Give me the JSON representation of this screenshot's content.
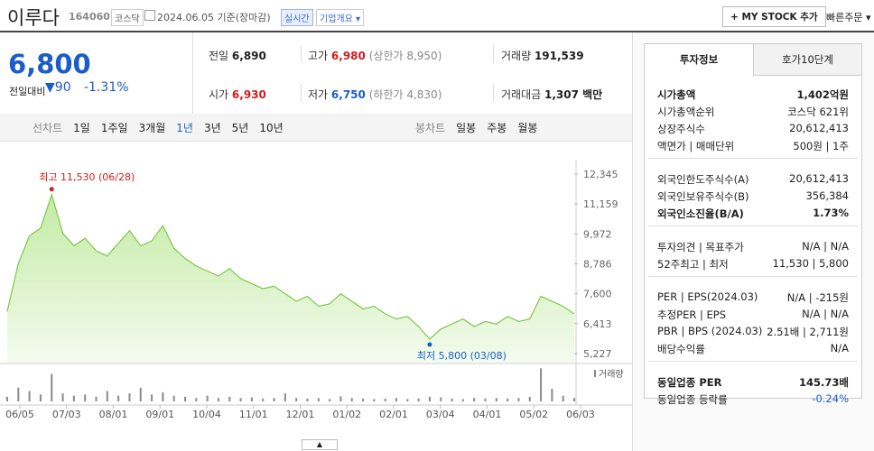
{
  "header": {
    "name": "이루다",
    "code": "164060",
    "market": "코스닥",
    "date": "2024.06.05 기준(장마감)",
    "realtime": "실시간",
    "overview": "기업개요",
    "my_stock": "+ MY STOCK 추가",
    "quick_order": "빠른주문"
  },
  "price": {
    "current": "6,800",
    "change_label": "전일대비",
    "change": "90",
    "change_pct": "-1.31%"
  },
  "stats": [
    {
      "label": "전일",
      "value": "6,890"
    },
    {
      "label": "고가",
      "value": "6,980",
      "limit": "(상한가 8,950)"
    },
    {
      "label": "거래량",
      "value": "191,539"
    },
    {
      "label": "시가",
      "value": "6,930"
    },
    {
      "label": "저가",
      "value": "6,750",
      "limit": "(하한가 4,830)"
    },
    {
      "label": "거래대금",
      "value": "1,307 백만"
    }
  ],
  "periods": {
    "line_label": "선차트",
    "line": [
      "1일",
      "1주일",
      "3개월",
      "1년",
      "3년",
      "5년",
      "10년"
    ],
    "candle_label": "봉차트",
    "candle": [
      "일봉",
      "주봉",
      "월봉"
    ]
  },
  "chart_data": {
    "type": "area",
    "color": "#7cc84a",
    "ylim": [
      5227,
      12345
    ],
    "yticks": [
      {
        "value": 12345,
        "label": "12,345"
      },
      {
        "value": 11159,
        "label": "11,159"
      },
      {
        "value": 9972,
        "label": "9,972"
      },
      {
        "value": 8786,
        "label": "8,786"
      },
      {
        "value": 7600,
        "label": "7,600"
      },
      {
        "value": 6413,
        "label": "6,413"
      },
      {
        "value": 5227,
        "label": "5,227"
      }
    ],
    "x_labels": [
      "06/05",
      "07/03",
      "08/01",
      "09/01",
      "10/04",
      "11/01",
      "12/01",
      "01/02",
      "02/01",
      "03/04",
      "04/01",
      "05/02",
      "06/03"
    ],
    "values": [
      6900,
      8800,
      9900,
      10200,
      11530,
      10000,
      9500,
      9800,
      9300,
      9100,
      9600,
      10100,
      9500,
      9700,
      10300,
      9400,
      9000,
      8700,
      8500,
      8300,
      8600,
      8200,
      8000,
      7800,
      7900,
      7600,
      7300,
      7500,
      7100,
      7200,
      7600,
      7300,
      7000,
      7100,
      6800,
      6600,
      6700,
      6300,
      5800,
      6200,
      6400,
      6600,
      6300,
      6500,
      6400,
      6700,
      6500,
      6600,
      7500,
      7300,
      7100,
      6800
    ],
    "annotations": [
      {
        "text": "최고 11,530 (06/28)",
        "value": 11530
      },
      {
        "text": "최저 5,800 (03/08)",
        "value": 5800
      }
    ],
    "volume": {
      "name": "거래량",
      "color": "#8a8a8a",
      "ylim": [
        0,
        3000000
      ],
      "values": [
        400000,
        1200000,
        900000,
        600000,
        2400000,
        700000,
        500000,
        600000,
        400000,
        900000,
        500000,
        700000,
        1200000,
        600000,
        800000,
        500000,
        400000,
        300000,
        500000,
        300000,
        400000,
        300000,
        350000,
        250000,
        300000,
        700000,
        300000,
        250000,
        300000,
        200000,
        450000,
        300000,
        250000,
        200000,
        250000,
        300000,
        200000,
        250000,
        400000,
        350000,
        250000,
        200000,
        300000,
        250000,
        300000,
        250000,
        300000,
        400000,
        2900000,
        1100000,
        500000,
        300000
      ]
    }
  },
  "invest_info": {
    "tabs": [
      "투자정보",
      "호가10단계"
    ],
    "groups": [
      [
        {
          "label": "시가총액",
          "value": "1,402억원",
          "emphasis": true
        },
        {
          "label": "시가총액순위",
          "value": "코스닥 621위"
        },
        {
          "label": "상장주식수",
          "value": "20,612,413"
        },
        {
          "label": "액면가 | 매매단위",
          "value": "500원 | 1주"
        }
      ],
      [
        {
          "label": "외국인한도주식수(A)",
          "value": "20,612,413"
        },
        {
          "label": "외국인보유주식수(B)",
          "value": "356,384"
        },
        {
          "label": "외국인소진율(B/A)",
          "value": "1.73%",
          "emphasis": true
        }
      ],
      [
        {
          "label": "투자의견 | 목표주가",
          "value": "N/A | N/A"
        },
        {
          "label": "52주최고 | 최저",
          "value": "11,530 | 5,800"
        }
      ],
      [
        {
          "label": "PER | EPS(2024.03)",
          "value": "N/A | -215원"
        },
        {
          "label": "추정PER | EPS",
          "value": "N/A | N/A"
        },
        {
          "label": "PBR | BPS (2024.03)",
          "value": "2.51배 | 2,711원"
        },
        {
          "label": "배당수익률",
          "value": "N/A"
        }
      ],
      [
        {
          "label": "동일업종 PER",
          "value": "145.73배",
          "emphasis": true
        },
        {
          "label": "동일업종 등락률",
          "value": "-0.24%",
          "color": "#1a5dc8"
        }
      ]
    ]
  }
}
